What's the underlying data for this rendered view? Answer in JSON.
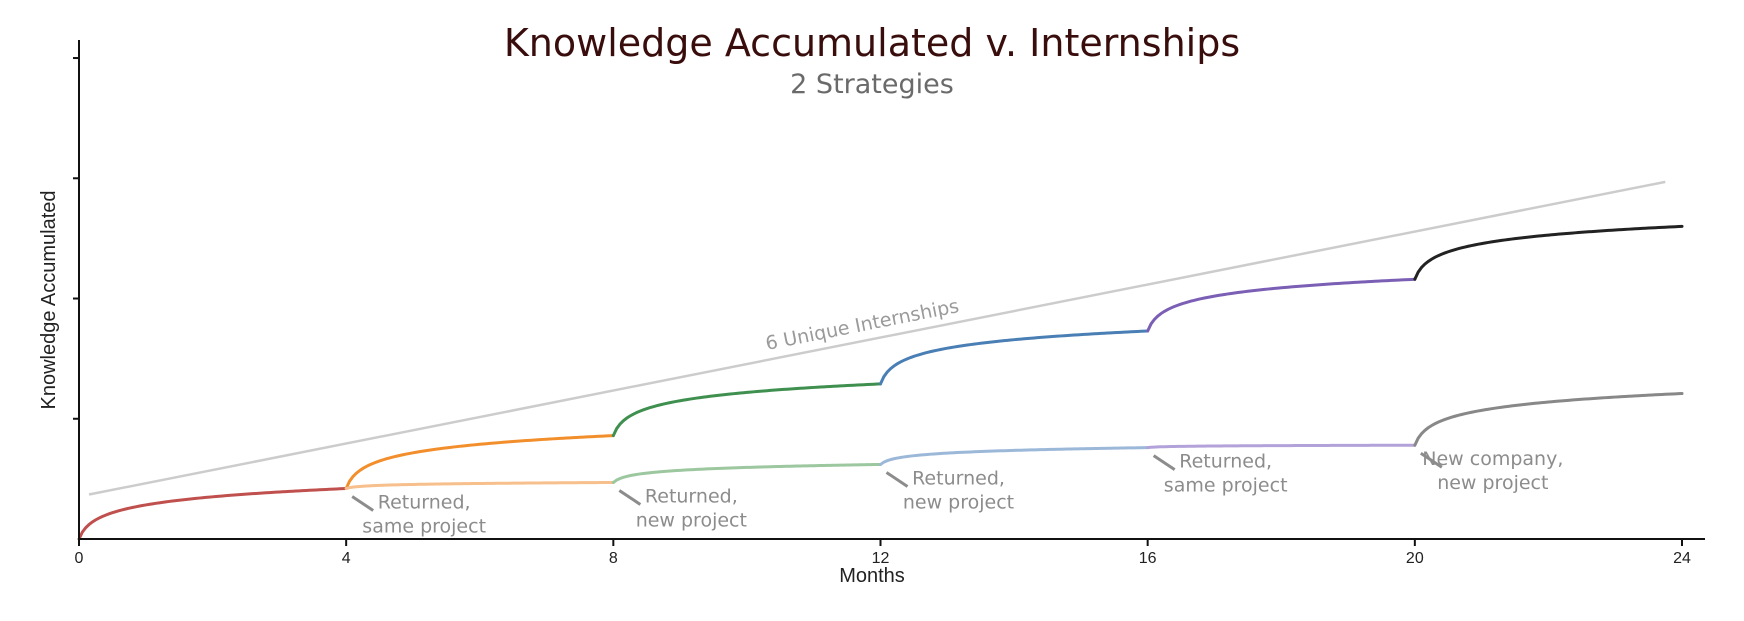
{
  "chart_data": {
    "type": "line",
    "title": "Knowledge Accumulated v. Internships",
    "subtitle": "2 Strategies",
    "xlabel": "Months",
    "ylabel": "Knowledge Accumulated",
    "xlim": [
      0,
      24
    ],
    "ylim": [
      0,
      4.15
    ],
    "x_ticks": [
      0,
      4,
      8,
      12,
      16,
      20,
      24
    ],
    "y_ticks": [
      1,
      2,
      3,
      4
    ],
    "y_tick_labels_shown": false,
    "grid": false,
    "legend": "none",
    "reference_line": {
      "label": "6 Unique Internships",
      "x": [
        0.15,
        23.75
      ],
      "y": [
        0.37,
        2.97
      ],
      "color": "#cccccc"
    },
    "unique_strategy": [
      {
        "x": [
          0,
          4
        ],
        "y_start": 0.0,
        "y_end": 0.42,
        "color": "#c0504d"
      },
      {
        "x": [
          4,
          8
        ],
        "y_start": 0.42,
        "y_end": 0.86,
        "color": "#f28e2b"
      },
      {
        "x": [
          8,
          12
        ],
        "y_start": 0.86,
        "y_end": 1.29,
        "color": "#3f8f4f"
      },
      {
        "x": [
          12,
          16
        ],
        "y_start": 1.29,
        "y_end": 1.73,
        "color": "#4a7fb5"
      },
      {
        "x": [
          16,
          20
        ],
        "y_start": 1.73,
        "y_end": 2.16,
        "color": "#7b5fb5"
      },
      {
        "x": [
          20,
          24
        ],
        "y_start": 2.16,
        "y_end": 2.6,
        "color": "#222222"
      }
    ],
    "returning_strategy": [
      {
        "x": [
          4,
          8
        ],
        "y_start": 0.42,
        "y_end": 0.47,
        "color": "#f7bf8c"
      },
      {
        "x": [
          8,
          12
        ],
        "y_start": 0.47,
        "y_end": 0.62,
        "color": "#9cc79f"
      },
      {
        "x": [
          12,
          16
        ],
        "y_start": 0.62,
        "y_end": 0.76,
        "color": "#9cb8d9"
      },
      {
        "x": [
          16,
          20
        ],
        "y_start": 0.76,
        "y_end": 0.78,
        "color": "#b3a2d9"
      },
      {
        "x": [
          20,
          24
        ],
        "y_start": 0.78,
        "y_end": 1.21,
        "color": "#888888"
      }
    ],
    "annotations": [
      {
        "x": 4,
        "y": 0.42,
        "lines": [
          "Returned,",
          "same project"
        ]
      },
      {
        "x": 8,
        "y": 0.47,
        "lines": [
          "Returned,",
          "new project"
        ]
      },
      {
        "x": 12,
        "y": 0.62,
        "lines": [
          "Returned,",
          "new project"
        ]
      },
      {
        "x": 16,
        "y": 0.76,
        "lines": [
          "Returned,",
          "same project"
        ]
      },
      {
        "x": 20,
        "y": 0.78,
        "lines": [
          "New company,",
          "new project"
        ]
      }
    ]
  }
}
